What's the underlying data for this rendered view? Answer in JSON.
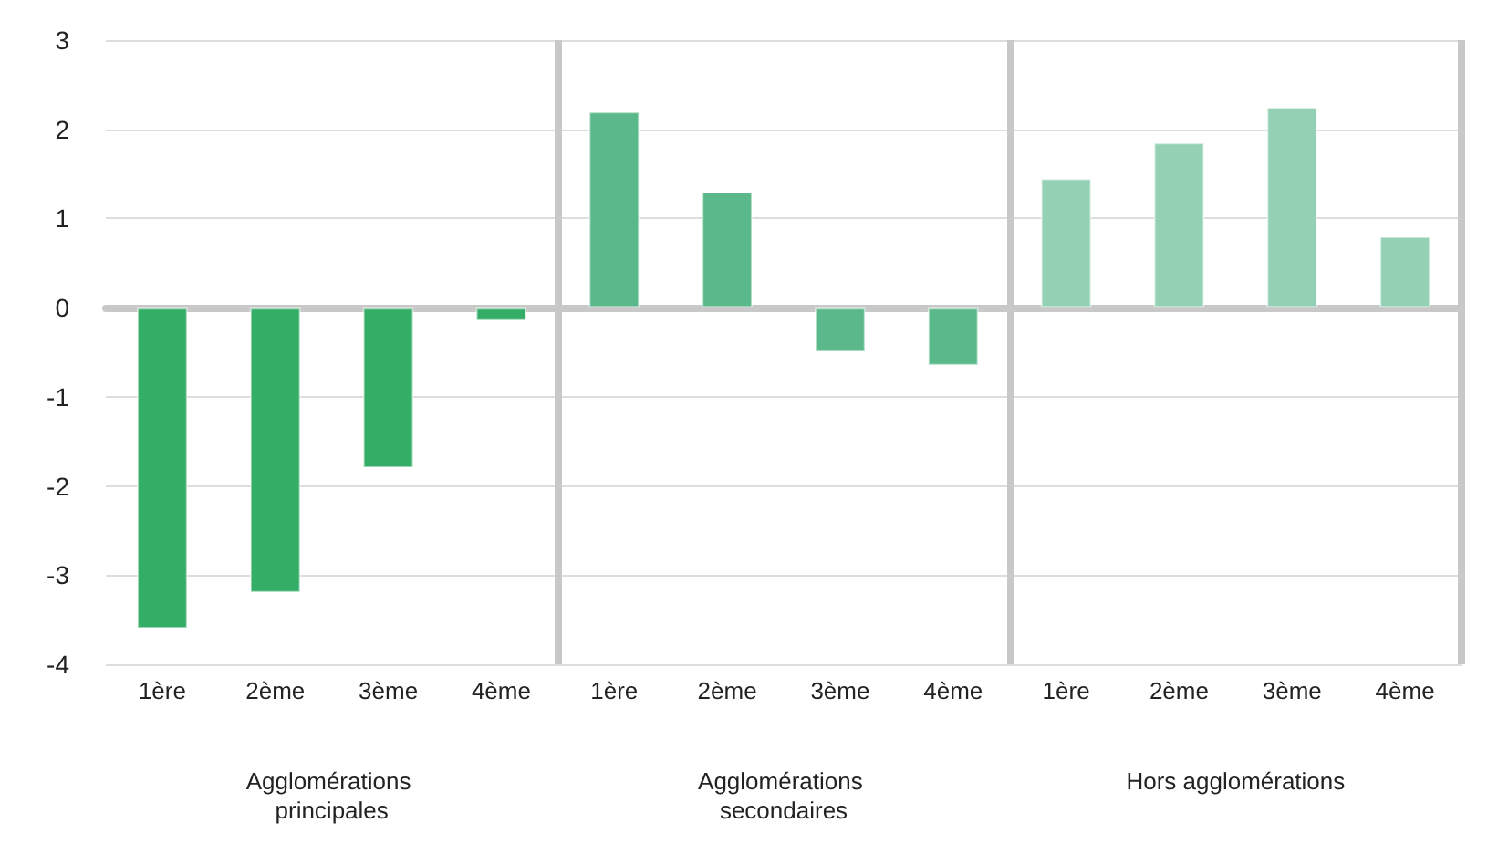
{
  "chart_data": {
    "type": "bar",
    "categories": [
      "1ère",
      "2ème",
      "3ème",
      "4ème",
      "1ère",
      "2ème",
      "3ème",
      "4ème",
      "1ère",
      "2ème",
      "3ème",
      "4ème"
    ],
    "values": [
      -3.6,
      -3.2,
      -1.8,
      -0.15,
      2.2,
      1.3,
      -0.5,
      -0.65,
      1.45,
      1.85,
      2.25,
      0.8
    ],
    "colors": [
      "#34ad66",
      "#34ad66",
      "#34ad66",
      "#34ad66",
      "#5bb88a",
      "#5bb88a",
      "#5bb88a",
      "#5bb88a",
      "#94d0b4",
      "#94d0b4",
      "#94d0b4",
      "#94d0b4"
    ],
    "ylim": [
      -4,
      3
    ],
    "yticks": [
      -4,
      -3,
      -2,
      -1,
      0,
      1,
      2,
      3
    ],
    "grid": "y",
    "annotations": [
      "Agglomérations principales",
      "Agglomérations secondaires",
      "Hors agglomérations"
    ]
  }
}
